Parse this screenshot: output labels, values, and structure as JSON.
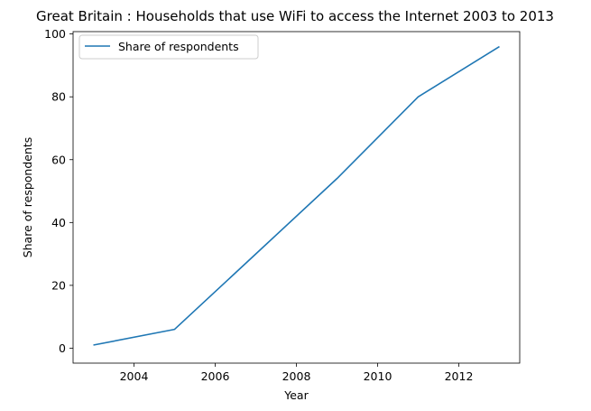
{
  "chart_data": {
    "type": "line",
    "title": "Great Britain : Households that use WiFi to access the Internet 2003 to 2013",
    "xlabel": "Year",
    "ylabel": "Share of respondents",
    "x": [
      2003,
      2005,
      2007,
      2009,
      2011,
      2013
    ],
    "series": [
      {
        "name": "Share of respondents",
        "values": [
          1,
          6,
          30,
          54,
          80,
          96
        ],
        "color": "#1f77b4"
      }
    ],
    "xlim": [
      2002.5,
      2013.5
    ],
    "ylim": [
      -4.75,
      100.75
    ],
    "xticks": [
      2004,
      2006,
      2008,
      2010,
      2012
    ],
    "yticks": [
      0,
      20,
      40,
      60,
      80,
      100
    ],
    "grid": false,
    "legend_position": "top-left"
  }
}
